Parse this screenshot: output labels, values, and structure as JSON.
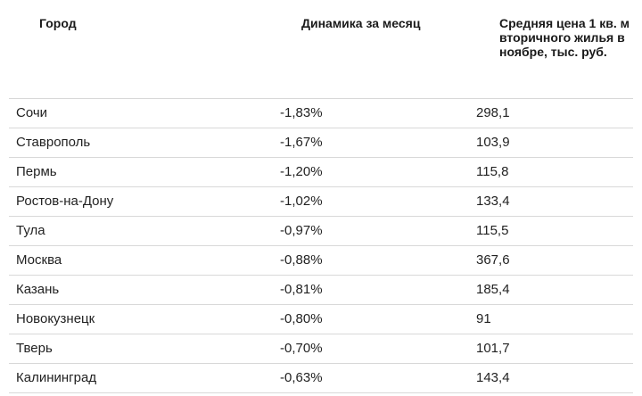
{
  "table": {
    "headers": {
      "city": "Город",
      "dynamics": "Динамика за месяц",
      "price": "Средняя цена 1 кв. м вторичного жилья в ноябре, тыс. руб."
    },
    "rows": [
      {
        "city": "Сочи",
        "dynamics": "-1,83%",
        "price": "298,1"
      },
      {
        "city": "Ставрополь",
        "dynamics": "-1,67%",
        "price": "103,9"
      },
      {
        "city": "Пермь",
        "dynamics": "-1,20%",
        "price": "115,8"
      },
      {
        "city": "Ростов-на-Дону",
        "dynamics": "-1,02%",
        "price": "133,4"
      },
      {
        "city": "Тула",
        "dynamics": "-0,97%",
        "price": "115,5"
      },
      {
        "city": "Москва",
        "dynamics": "-0,88%",
        "price": "367,6"
      },
      {
        "city": "Казань",
        "dynamics": "-0,81%",
        "price": "185,4"
      },
      {
        "city": "Новокузнецк",
        "dynamics": "-0,80%",
        "price": "91"
      },
      {
        "city": "Тверь",
        "dynamics": "-0,70%",
        "price": "101,7"
      },
      {
        "city": "Калининград",
        "dynamics": "-0,63%",
        "price": "143,4"
      }
    ]
  }
}
